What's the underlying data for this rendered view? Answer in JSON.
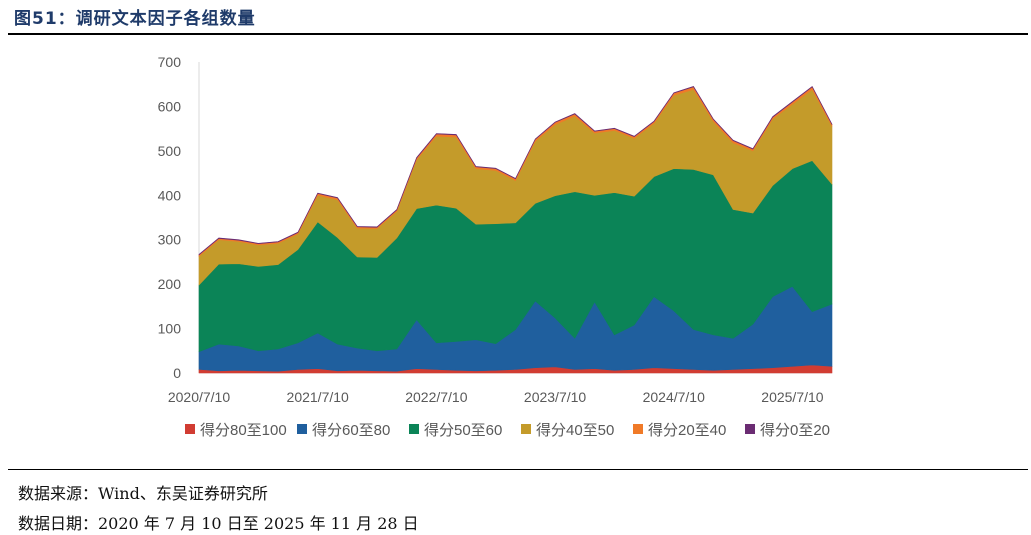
{
  "title": "图51：调研文本因子各组数量",
  "source": "数据来源：Wind、东吴证券研究所",
  "date_range": "数据日期：2020 年 7 月 10 日至 2025 年 11 月 28 日",
  "chart_data": {
    "type": "area",
    "stacked": true,
    "title": "",
    "xlabel": "",
    "ylabel": "",
    "ylim": [
      0,
      700
    ],
    "yticks": [
      0,
      100,
      200,
      300,
      400,
      500,
      600,
      700
    ],
    "xticks": [
      "2020/7/10",
      "2021/7/10",
      "2022/7/10",
      "2023/7/10",
      "2024/7/10",
      "2025/7/10"
    ],
    "legend_position": "bottom",
    "x": [
      "2020/7/10",
      "2020/9/10",
      "2020/11/10",
      "2021/1/10",
      "2021/3/10",
      "2021/5/10",
      "2021/7/10",
      "2021/9/10",
      "2021/11/10",
      "2022/1/10",
      "2022/3/10",
      "2022/5/10",
      "2022/7/10",
      "2022/9/10",
      "2022/11/10",
      "2023/1/10",
      "2023/3/10",
      "2023/5/10",
      "2023/7/10",
      "2023/9/10",
      "2023/11/10",
      "2024/1/10",
      "2024/3/10",
      "2024/5/10",
      "2024/7/10",
      "2024/9/10",
      "2024/11/10",
      "2025/1/10",
      "2025/3/10",
      "2025/5/10",
      "2025/7/10",
      "2025/9/10",
      "2025/11/28"
    ],
    "series": [
      {
        "name": "得分80至100",
        "color": "#d13c32",
        "values": [
          8,
          5,
          6,
          5,
          4,
          8,
          10,
          5,
          6,
          5,
          4,
          10,
          8,
          6,
          5,
          6,
          8,
          12,
          14,
          8,
          10,
          6,
          8,
          12,
          10,
          8,
          6,
          8,
          10,
          12,
          15,
          18,
          15
        ]
      },
      {
        "name": "得分60至80",
        "color": "#1f5f9e",
        "values": [
          40,
          60,
          55,
          45,
          50,
          60,
          80,
          60,
          50,
          45,
          50,
          110,
          60,
          65,
          70,
          60,
          90,
          150,
          110,
          70,
          150,
          80,
          100,
          160,
          130,
          90,
          80,
          70,
          100,
          160,
          180,
          120,
          140
        ]
      },
      {
        "name": "得分50至60",
        "color": "#0b8457",
        "values": [
          150,
          180,
          185,
          190,
          190,
          210,
          250,
          240,
          205,
          210,
          250,
          250,
          310,
          300,
          260,
          270,
          240,
          220,
          275,
          330,
          240,
          320,
          290,
          270,
          320,
          360,
          360,
          290,
          250,
          250,
          265,
          340,
          270
        ]
      },
      {
        "name": "得分40至50",
        "color": "#c49b2a",
        "values": [
          65,
          55,
          50,
          48,
          48,
          35,
          60,
          85,
          65,
          65,
          60,
          110,
          155,
          160,
          125,
          120,
          95,
          140,
          160,
          170,
          140,
          140,
          130,
          120,
          165,
          180,
          120,
          150,
          140,
          150,
          145,
          160,
          130
        ]
      },
      {
        "name": "得分20至40",
        "color": "#f07a28",
        "values": [
          3,
          3,
          3,
          3,
          3,
          3,
          4,
          4,
          3,
          3,
          3,
          4,
          5,
          5,
          4,
          4,
          4,
          4,
          5,
          5,
          4,
          4,
          4,
          4,
          5,
          6,
          5,
          5,
          4,
          4,
          5,
          6,
          4
        ]
      },
      {
        "name": "得分0至20",
        "color": "#6b2c73",
        "values": [
          1,
          1,
          1,
          1,
          1,
          1,
          1,
          1,
          1,
          1,
          1,
          1,
          1,
          1,
          1,
          1,
          1,
          1,
          1,
          1,
          1,
          1,
          1,
          1,
          1,
          1,
          1,
          1,
          1,
          1,
          1,
          1,
          1
        ]
      }
    ]
  }
}
